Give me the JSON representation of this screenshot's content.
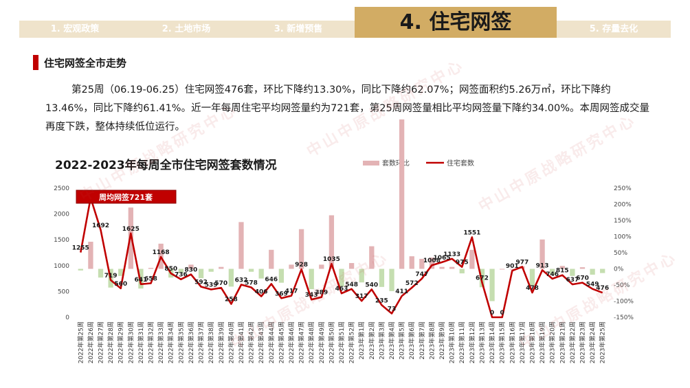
{
  "nav": {
    "tabs": [
      {
        "label": "1. 宏观政策",
        "active": false
      },
      {
        "label": "2. 土地市场",
        "active": false
      },
      {
        "label": "3. 新增预售",
        "active": false
      },
      {
        "label": "4. 住宅网签",
        "active": true
      },
      {
        "label": "5. 存量去化",
        "active": false
      }
    ]
  },
  "section": {
    "title": "住宅网签全市走势"
  },
  "summary": "第25周（06.19-06.25）住宅网签476套，环比下降约13.30%，同比下降约62.07%；网签面积约5.26万㎡，环比下降约13.46%，同比下降约61.41%。近一年每周住宅平均网签量约为721套，第25周网签量相比平均网签量下降约34.00%。本周网签成交量再度下跌，整体持续低位运行。",
  "watermark": "中山中原战略研究中心",
  "colors": {
    "accent": "#c00000",
    "nav_active": "#d2ac64",
    "nav_inactive": "#efe3cb",
    "bar_positive": "#e3b3b5",
    "bar_negative": "#c5deb0",
    "line": "#c00000"
  },
  "chart_data": {
    "type": "bar+line",
    "title": "2022-2023年每周全市住宅网签套数情况",
    "legend": [
      "套数环比",
      "住宅套数"
    ],
    "annotation": "周均网签721套",
    "left_axis": {
      "min": 0,
      "max": 2500,
      "ticks": [
        "0",
        "500",
        "1000",
        "1500",
        "2000",
        "2500"
      ]
    },
    "right_axis": {
      "min": -150,
      "max": 250,
      "ticks": [
        "-150%",
        "-100%",
        "-50%",
        "0%",
        "50%",
        "100%",
        "150%",
        "200%",
        "250%"
      ]
    },
    "categories": [
      "2022年第25周",
      "2022年第26周",
      "2022年第27周",
      "2022年第28周",
      "2022年第29周",
      "2022年第30周",
      "2022年第31周",
      "2022年第32周",
      "2022年第33周",
      "2022年第34周",
      "2022年第35周",
      "2022年第36周",
      "2022年第37周",
      "2022年第38周",
      "2022年第39周",
      "2022年第40周",
      "2022年第41周",
      "2022年第42周",
      "2022年第43周",
      "2022年第44周",
      "2022年第45周",
      "2022年第46周",
      "2022年第47周",
      "2022年第48周",
      "2022年第49周",
      "2022年第50周",
      "2022年第51周",
      "2022年第52周",
      "2023年第1周",
      "2023年第2周",
      "2023年第3周",
      "2023年第4周",
      "2023年第5周",
      "2023年第6周",
      "2023年第7周",
      "2023年第8周",
      "2023年第9周",
      "2023年第10周",
      "2023年第11周",
      "2023年第12周",
      "2023年第13周",
      "2023年第14周",
      "2023年第15周",
      "2023年第16周",
      "2023年第17周",
      "2023年第18周",
      "2023年第19周",
      "2023年第20周",
      "2023年第21周",
      "2023年第22周",
      "2023年第23周",
      "2023年第24周",
      "2023年第25周"
    ],
    "units": [
      1255,
      2313,
      1692,
      719,
      560,
      1625,
      641,
      658,
      1168,
      850,
      736,
      830,
      592,
      539,
      570,
      258,
      632,
      578,
      406,
      646,
      369,
      417,
      928,
      343,
      389,
      1035,
      463,
      548,
      317,
      540,
      235,
      73,
      411,
      572,
      747,
      1008,
      1065,
      1133,
      975,
      1551,
      672,
      0,
      0,
      901,
      977,
      478,
      913,
      746,
      815,
      637,
      670,
      549,
      476
    ],
    "mom_pct": [
      -5,
      84,
      -27,
      -58,
      -22,
      190,
      -61,
      3,
      78,
      -27,
      -13,
      13,
      -29,
      -9,
      6,
      -55,
      145,
      -9,
      -30,
      59,
      -43,
      13,
      123,
      -63,
      13,
      166,
      -55,
      18,
      -42,
      70,
      -56,
      -69,
      463,
      39,
      31,
      35,
      6,
      6,
      -14,
      59,
      -57,
      -100,
      0,
      0,
      8,
      -51,
      91,
      -18,
      9,
      -22,
      5,
      -18,
      -13
    ]
  }
}
